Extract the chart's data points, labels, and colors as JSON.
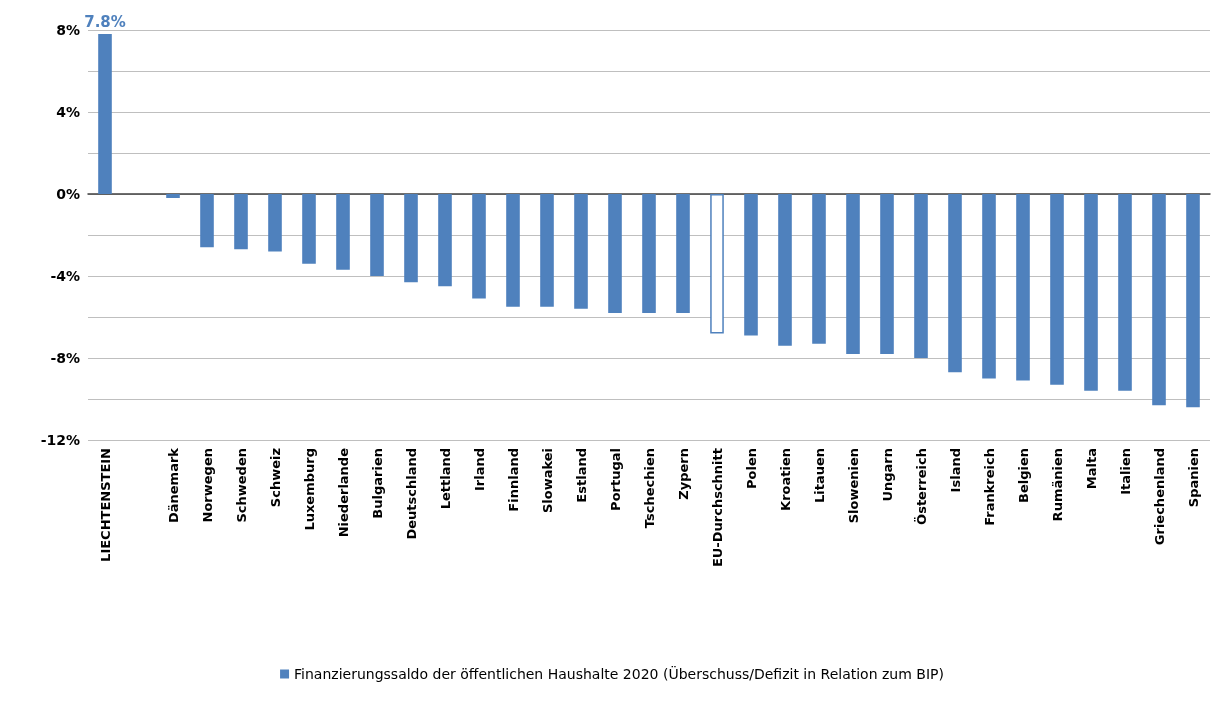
{
  "chart_data": {
    "type": "bar",
    "categories": [
      "LIECHTENSTEIN",
      null,
      "Dänemark",
      "Norwegen",
      "Schweden",
      "Schweiz",
      "Luxemburg",
      "Niederlande",
      "Bulgarien",
      "Deutschland",
      "Lettland",
      "Irland",
      "Finnland",
      "Slowakei",
      "Estland",
      "Portugal",
      "Tschechien",
      "Zypern",
      "EU-Durchschnitt",
      "Polen",
      "Kroatien",
      "Litauen",
      "Slowenien",
      "Ungarn",
      "Österreich",
      "Island",
      "Frankreich",
      "Belgien",
      "Rumänien",
      "Malta",
      "Italien",
      "Griechenland",
      "Spanien"
    ],
    "series": [
      {
        "name": "Finanzierungssaldo der öffentlichen Haushalte 2020 (Überschuss/Defizit in Relation zum BIP)",
        "color": "#4f81bd",
        "values": [
          7.8,
          null,
          -0.2,
          -2.6,
          -2.7,
          -2.8,
          -3.4,
          -3.7,
          -4.0,
          -4.3,
          -4.5,
          -5.1,
          -5.5,
          -5.5,
          -5.6,
          -5.8,
          -5.8,
          -5.8,
          -6.8,
          -6.9,
          -7.4,
          -7.3,
          -7.8,
          -7.8,
          -8.0,
          -8.7,
          -9.0,
          -9.1,
          -9.3,
          -9.6,
          -9.6,
          -10.3,
          -10.4
        ],
        "colors": [
          "#4f81bd",
          null,
          "#4f81bd",
          "#4f81bd",
          "#4f81bd",
          "#4f81bd",
          "#4f81bd",
          "#4f81bd",
          "#4f81bd",
          "#4f81bd",
          "#4f81bd",
          "#4f81bd",
          "#4f81bd",
          "#4f81bd",
          "#4f81bd",
          "#4f81bd",
          "#4f81bd",
          "#4f81bd",
          "#ffffff",
          "#4f81bd",
          "#4f81bd",
          "#4f81bd",
          "#4f81bd",
          "#4f81bd",
          "#4f81bd",
          "#4f81bd",
          "#4f81bd",
          "#4f81bd",
          "#4f81bd",
          "#4f81bd",
          "#4f81bd",
          "#4f81bd",
          "#4f81bd"
        ],
        "value_labels": [
          "7.8%",
          null,
          null,
          null,
          null,
          null,
          null,
          null,
          null,
          null,
          null,
          null,
          null,
          null,
          null,
          null,
          null,
          null,
          null,
          null,
          null,
          null,
          null,
          null,
          null,
          null,
          null,
          null,
          null,
          null,
          null,
          null,
          null
        ]
      }
    ],
    "ylim": [
      -12,
      8
    ],
    "yticks": [
      {
        "value": -12,
        "label": "-12%"
      },
      {
        "value": -10,
        "label": null
      },
      {
        "value": -8,
        "label": "-8%"
      },
      {
        "value": -6,
        "label": null
      },
      {
        "value": -4,
        "label": "-4%"
      },
      {
        "value": -2,
        "label": null
      },
      {
        "value": 0,
        "label": "0%"
      },
      {
        "value": 2,
        "label": null
      },
      {
        "value": 4,
        "label": "4%"
      },
      {
        "value": 6,
        "label": null
      },
      {
        "value": 8,
        "label": "8%"
      }
    ],
    "grid": "y",
    "legend": "bottom"
  }
}
